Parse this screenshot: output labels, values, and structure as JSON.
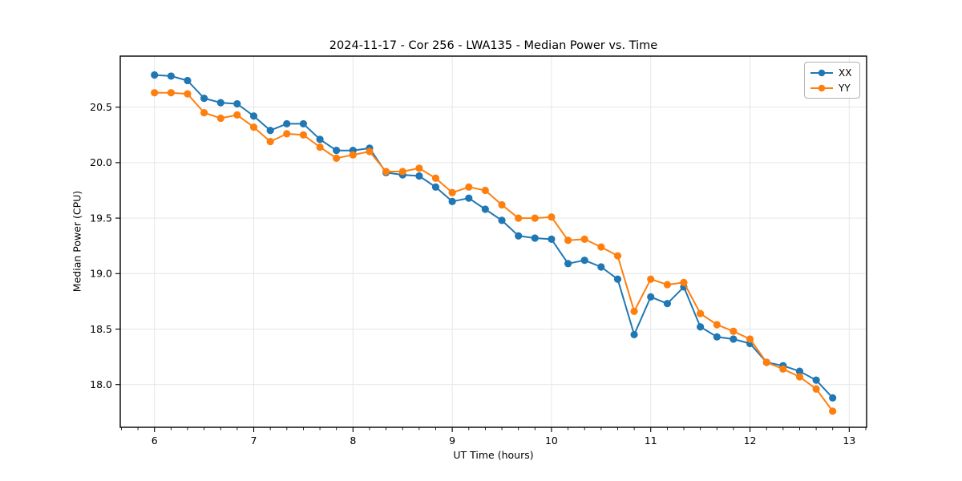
{
  "chart_data": {
    "type": "line",
    "title": "2024-11-17 - Cor 256 - LWA135 - Median Power vs. Time",
    "xlabel": "UT Time (hours)",
    "ylabel": "Median Power (CPU)",
    "xlim": [
      5.655,
      13.175
    ],
    "ylim": [
      17.615,
      20.96
    ],
    "xticks": [
      6,
      7,
      8,
      9,
      10,
      11,
      12,
      13
    ],
    "yticks": [
      18.0,
      18.5,
      19.0,
      19.5,
      20.0,
      20.5
    ],
    "minor_xtick_step": 0.16667,
    "grid": true,
    "legend_position": "upper right",
    "grid_color": "#e6e6e6",
    "x": [
      6.0,
      6.167,
      6.333,
      6.5,
      6.667,
      6.833,
      7.0,
      7.167,
      7.333,
      7.5,
      7.667,
      7.833,
      8.0,
      8.167,
      8.333,
      8.5,
      8.667,
      8.833,
      9.0,
      9.167,
      9.333,
      9.5,
      9.667,
      9.833,
      10.0,
      10.167,
      10.333,
      10.5,
      10.667,
      10.833,
      11.0,
      11.167,
      11.333,
      11.5,
      11.667,
      11.833,
      12.0,
      12.167,
      12.333,
      12.5,
      12.667,
      12.833
    ],
    "series": [
      {
        "name": "XX",
        "color": "#1f77b4",
        "values": [
          20.79,
          20.78,
          20.74,
          20.58,
          20.54,
          20.53,
          20.42,
          20.29,
          20.35,
          20.35,
          20.21,
          20.11,
          20.11,
          20.13,
          19.91,
          19.89,
          19.88,
          19.78,
          19.65,
          19.68,
          19.58,
          19.48,
          19.34,
          19.32,
          19.31,
          19.09,
          19.12,
          19.06,
          18.95,
          18.45,
          18.79,
          18.73,
          18.88,
          18.52,
          18.43,
          18.41,
          18.37,
          18.2,
          18.17,
          18.12,
          18.04,
          17.88
        ]
      },
      {
        "name": "YY",
        "color": "#ff7f0e",
        "values": [
          20.63,
          20.63,
          20.62,
          20.45,
          20.4,
          20.43,
          20.32,
          20.19,
          20.26,
          20.25,
          20.14,
          20.04,
          20.07,
          20.1,
          19.92,
          19.92,
          19.95,
          19.86,
          19.73,
          19.78,
          19.75,
          19.62,
          19.5,
          19.5,
          19.51,
          19.3,
          19.31,
          19.24,
          19.16,
          18.66,
          18.95,
          18.9,
          18.92,
          18.64,
          18.54,
          18.48,
          18.41,
          18.2,
          18.14,
          18.07,
          17.96,
          17.76
        ]
      }
    ]
  }
}
